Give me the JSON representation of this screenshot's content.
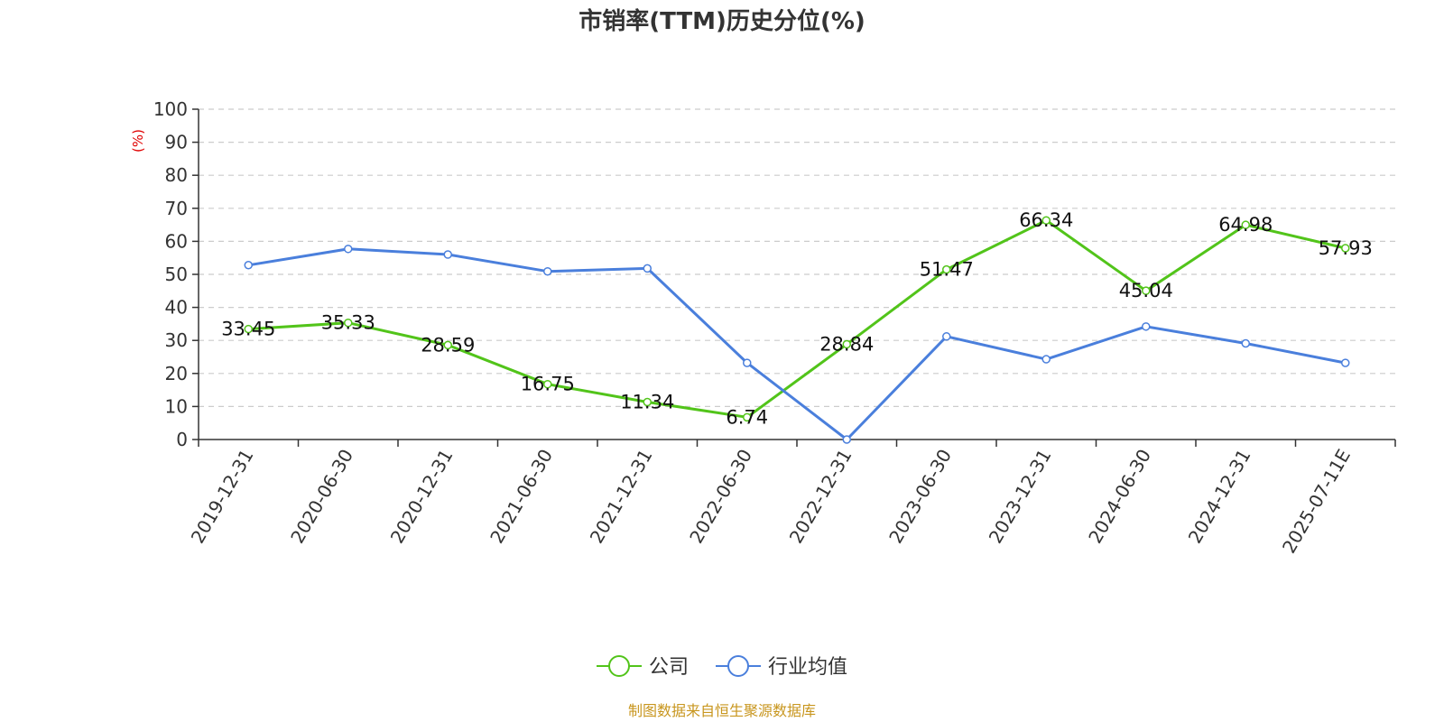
{
  "chart_data": {
    "type": "line",
    "title": "市销率(TTM)历史分位(%)",
    "ylabel": "(%)",
    "xlabel": "",
    "ylim": [
      0,
      100
    ],
    "yticks": [
      0,
      10,
      20,
      30,
      40,
      50,
      60,
      70,
      80,
      90,
      100
    ],
    "grid": true,
    "legend_position": "bottom-center",
    "categories": [
      "2019-12-31",
      "2020-06-30",
      "2020-12-31",
      "2021-06-30",
      "2021-12-31",
      "2022-06-30",
      "2022-12-31",
      "2023-06-30",
      "2023-12-31",
      "2024-06-30",
      "2024-12-31",
      "2025-07-11E"
    ],
    "series": [
      {
        "name": "公司",
        "color": "#52c41a",
        "values": [
          33.45,
          35.33,
          28.59,
          16.75,
          11.34,
          6.74,
          28.84,
          51.47,
          66.34,
          45.04,
          64.98,
          57.93
        ],
        "labels": [
          "33.45",
          "35.33",
          "28.59",
          "16.75",
          "11.34",
          "6.74",
          "28.84",
          "51.47",
          "66.34",
          "45.04",
          "64.98",
          "57.93"
        ]
      },
      {
        "name": "行业均值",
        "color": "#4a7fdc",
        "values": [
          52.8,
          57.7,
          56.0,
          50.9,
          51.8,
          23.2,
          0.0,
          31.2,
          24.3,
          34.2,
          29.1,
          23.2
        ]
      }
    ],
    "source": "制图数据来自恒生聚源数据库",
    "colors": {
      "axis": "#333333",
      "grid": "#cccccc",
      "ylabel": "#e00000",
      "source": "#c8961e"
    }
  }
}
